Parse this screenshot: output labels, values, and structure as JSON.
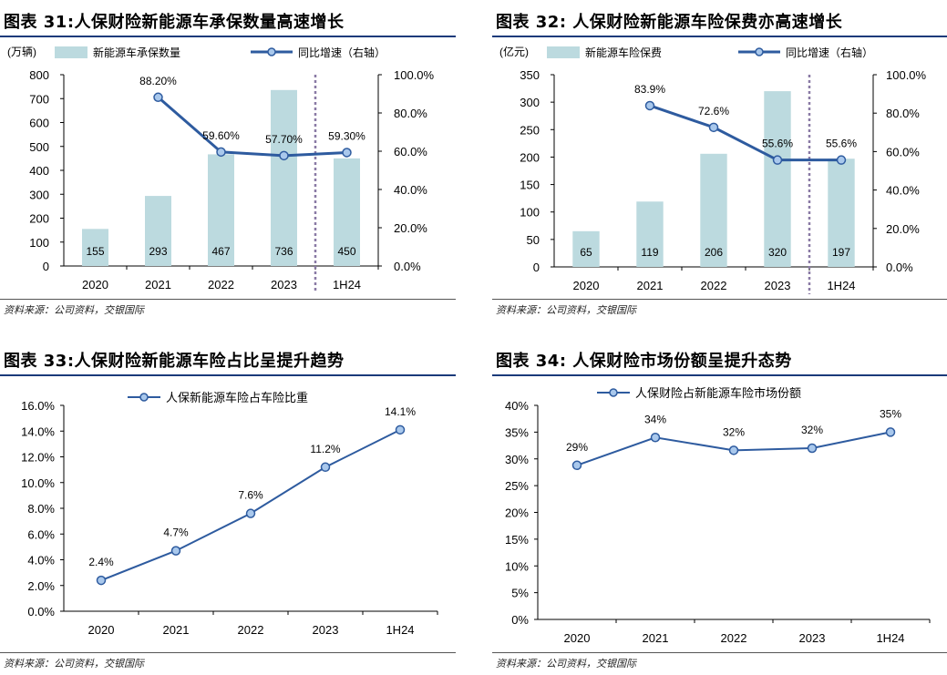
{
  "source_text": "资料来源：公司资料，交银国际",
  "colors": {
    "bar": "#bcdadf",
    "line": "#2e5b9f",
    "marker_fill": "#a9c8ec",
    "divider": "#8a7aa5",
    "rule": "#1a3a7a"
  },
  "chart_data": [
    {
      "type": "bar",
      "title": "图表 31:人保财险新能源车承保数量高速增长",
      "unit_label": "(万辆)",
      "categories": [
        "2020",
        "2021",
        "2022",
        "2023",
        "1H24"
      ],
      "ylim": [
        0,
        800
      ],
      "y_ticks": [
        "0",
        "100",
        "200",
        "300",
        "400",
        "500",
        "600",
        "700",
        "800"
      ],
      "y2lim": [
        0,
        100
      ],
      "y2_ticks": [
        "0.0%",
        "20.0%",
        "40.0%",
        "60.0%",
        "80.0%",
        "100.0%"
      ],
      "series": [
        {
          "name": "新能源车承保数量",
          "kind": "bar",
          "values": [
            155,
            293,
            467,
            736,
            450
          ],
          "labels": [
            "155",
            "293",
            "467",
            "736",
            "450"
          ]
        },
        {
          "name": "同比增速（右轴）",
          "kind": "line",
          "axis": "right",
          "values": [
            null,
            88.2,
            59.6,
            57.7,
            59.3
          ],
          "labels": [
            "",
            "88.20%",
            "59.60%",
            "57.70%",
            "59.30%"
          ]
        }
      ],
      "divider_after": "2023",
      "source": "资料来源：公司资料，交银国际"
    },
    {
      "type": "bar",
      "title": "图表 32: 人保财险新能源车险保费亦高速增长",
      "unit_label": "(亿元)",
      "categories": [
        "2020",
        "2021",
        "2022",
        "2023",
        "1H24"
      ],
      "ylim": [
        0,
        350
      ],
      "y_ticks": [
        "0",
        "50",
        "100",
        "150",
        "200",
        "250",
        "300",
        "350"
      ],
      "y2lim": [
        0,
        100
      ],
      "y2_ticks": [
        "0.0%",
        "20.0%",
        "40.0%",
        "60.0%",
        "80.0%",
        "100.0%"
      ],
      "series": [
        {
          "name": "新能源车险保费",
          "kind": "bar",
          "values": [
            65,
            119,
            206,
            320,
            197
          ],
          "labels": [
            "65",
            "119",
            "206",
            "320",
            "197"
          ]
        },
        {
          "name": "同比增速（右轴）",
          "kind": "line",
          "axis": "right",
          "values": [
            null,
            83.9,
            72.6,
            55.6,
            55.6
          ],
          "labels": [
            "",
            "83.9%",
            "72.6%",
            "55.6%",
            "55.6%"
          ]
        }
      ],
      "divider_after": "2023",
      "source": "资料来源：公司资料，交银国际"
    },
    {
      "type": "line",
      "title": "图表 33:人保财险新能源车险占比呈提升趋势",
      "categories": [
        "2020",
        "2021",
        "2022",
        "2023",
        "1H24"
      ],
      "ylim": [
        0,
        16
      ],
      "y_ticks": [
        "0.0%",
        "2.0%",
        "4.0%",
        "6.0%",
        "8.0%",
        "10.0%",
        "12.0%",
        "14.0%",
        "16.0%"
      ],
      "series": [
        {
          "name": "人保新能源车险占车险比重",
          "values": [
            2.4,
            4.7,
            7.6,
            11.2,
            14.1
          ],
          "labels": [
            "2.4%",
            "4.7%",
            "7.6%",
            "11.2%",
            "14.1%"
          ]
        }
      ],
      "source": "资料来源：公司资料，交银国际"
    },
    {
      "type": "line",
      "title": "图表 34: 人保财险市场份额呈提升态势",
      "categories": [
        "2020",
        "2021",
        "2022",
        "2023",
        "1H24"
      ],
      "ylim": [
        0,
        40
      ],
      "y_ticks": [
        "0%",
        "5%",
        "10%",
        "15%",
        "20%",
        "25%",
        "30%",
        "35%",
        "40%"
      ],
      "series": [
        {
          "name": "人保财险占新能源车险市场份额",
          "values": [
            28.8,
            34.0,
            31.6,
            32.0,
            35.0
          ],
          "labels": [
            "29%",
            "34%",
            "32%",
            "32%",
            "35%"
          ]
        }
      ],
      "source": "资料来源：公司资料，交银国际"
    }
  ]
}
